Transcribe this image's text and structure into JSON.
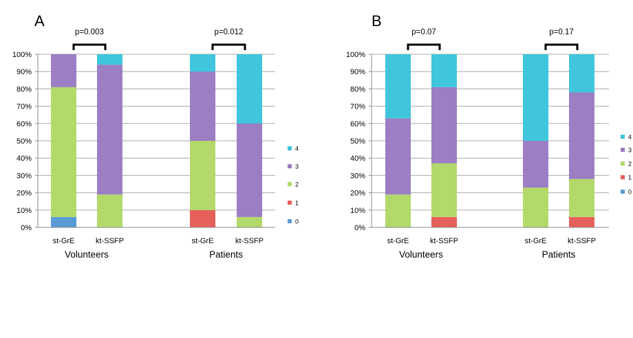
{
  "chart_data": [
    {
      "type": "bar",
      "stacked": true,
      "percent": true,
      "panel_label": "A",
      "categories": [
        "st-GrE",
        "kt-SSFP",
        "st-GrE",
        "kt-SSFP"
      ],
      "groups": [
        {
          "label": "Volunteers",
          "categories": [
            "st-GrE",
            "kt-SSFP"
          ]
        },
        {
          "label": "Patients",
          "categories": [
            "st-GrE",
            "kt-SSFP"
          ]
        }
      ],
      "series": [
        {
          "name": "0",
          "color": "#5b9bd5",
          "values": [
            6,
            0,
            0,
            0
          ]
        },
        {
          "name": "1",
          "color": "#e5605a",
          "values": [
            0,
            0,
            10,
            0
          ]
        },
        {
          "name": "2",
          "color": "#b3d96b",
          "values": [
            75,
            19,
            40,
            6
          ]
        },
        {
          "name": "3",
          "color": "#9b7ec3",
          "values": [
            19,
            75,
            40,
            54
          ]
        },
        {
          "name": "4",
          "color": "#3fc6dc",
          "values": [
            0,
            6,
            10,
            40
          ]
        }
      ],
      "comparisons": [
        {
          "group": "Volunteers",
          "label": "p=0.003"
        },
        {
          "group": "Patients",
          "label": "p=0.012"
        }
      ],
      "ylim": [
        0,
        100
      ],
      "yticks": [
        "0%",
        "10%",
        "20%",
        "30%",
        "40%",
        "50%",
        "60%",
        "70%",
        "80%",
        "90%",
        "100%"
      ],
      "grid": true,
      "legend": "right"
    },
    {
      "type": "bar",
      "stacked": true,
      "percent": true,
      "panel_label": "B",
      "categories": [
        "st-GrE",
        "kt-SSFP",
        "st-GrE",
        "kt-SSFP"
      ],
      "groups": [
        {
          "label": "Volunteers",
          "categories": [
            "st-GrE",
            "kt-SSFP"
          ]
        },
        {
          "label": "Patients",
          "categories": [
            "st-GrE",
            "kt-SSFP"
          ]
        }
      ],
      "series": [
        {
          "name": "0",
          "color": "#5b9bd5",
          "values": [
            0,
            0,
            0,
            0
          ]
        },
        {
          "name": "1",
          "color": "#e5605a",
          "values": [
            0,
            6,
            0,
            6
          ]
        },
        {
          "name": "2",
          "color": "#b3d96b",
          "values": [
            19,
            31,
            23,
            22
          ]
        },
        {
          "name": "3",
          "color": "#9b7ec3",
          "values": [
            44,
            44,
            27,
            50
          ]
        },
        {
          "name": "4",
          "color": "#3fc6dc",
          "values": [
            37,
            19,
            50,
            22
          ]
        }
      ],
      "comparisons": [
        {
          "group": "Volunteers",
          "label": "p=0.07"
        },
        {
          "group": "Patients",
          "label": "p=0.17"
        }
      ],
      "ylim": [
        0,
        100
      ],
      "yticks": [
        "0%",
        "10%",
        "20%",
        "30%",
        "40%",
        "50%",
        "60%",
        "70%",
        "80%",
        "90%",
        "100%"
      ],
      "grid": true,
      "legend": "right"
    }
  ]
}
